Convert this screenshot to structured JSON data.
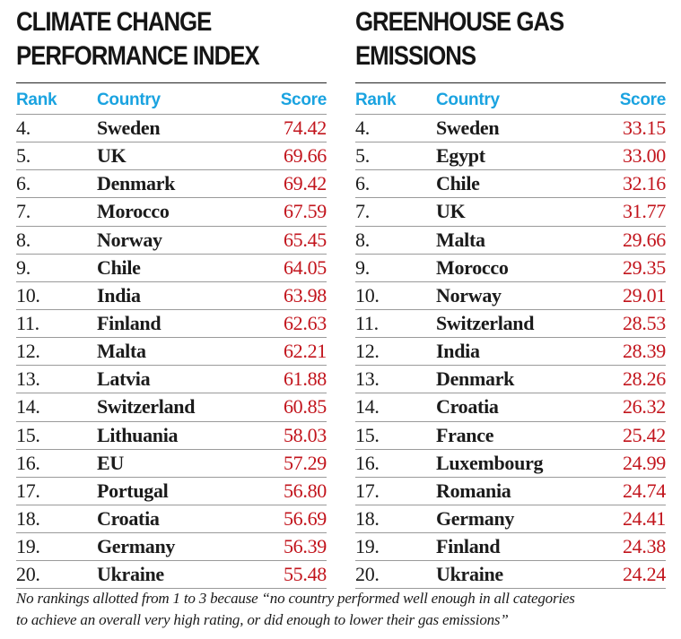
{
  "left": {
    "title_line1": "CLIMATE CHANGE",
    "title_line2": "PERFORMANCE INDEX",
    "headers": {
      "rank": "Rank",
      "country": "Country",
      "score": "Score"
    },
    "rows": [
      {
        "rank": "4.",
        "country": "Sweden",
        "score": "74.42"
      },
      {
        "rank": "5.",
        "country": "UK",
        "score": "69.66"
      },
      {
        "rank": "6.",
        "country": "Denmark",
        "score": "69.42"
      },
      {
        "rank": "7.",
        "country": "Morocco",
        "score": "67.59"
      },
      {
        "rank": "8.",
        "country": "Norway",
        "score": "65.45"
      },
      {
        "rank": "9.",
        "country": "Chile",
        "score": "64.05"
      },
      {
        "rank": "10.",
        "country": "India",
        "score": "63.98"
      },
      {
        "rank": "11.",
        "country": "Finland",
        "score": "62.63"
      },
      {
        "rank": "12.",
        "country": "Malta",
        "score": "62.21"
      },
      {
        "rank": "13.",
        "country": "Latvia",
        "score": "61.88"
      },
      {
        "rank": "14.",
        "country": "Switzerland",
        "score": "60.85"
      },
      {
        "rank": "15.",
        "country": "Lithuania",
        "score": "58.03"
      },
      {
        "rank": "16.",
        "country": "EU",
        "score": "57.29"
      },
      {
        "rank": "17.",
        "country": "Portugal",
        "score": "56.80"
      },
      {
        "rank": "18.",
        "country": "Croatia",
        "score": "56.69"
      },
      {
        "rank": "19.",
        "country": "Germany",
        "score": "56.39"
      },
      {
        "rank": "20.",
        "country": "Ukraine",
        "score": "55.48"
      }
    ]
  },
  "right": {
    "title_line1": "GREENHOUSE GAS",
    "title_line2": "EMISSIONS",
    "headers": {
      "rank": "Rank",
      "country": "Country",
      "score": "Score"
    },
    "rows": [
      {
        "rank": "4.",
        "country": "Sweden",
        "score": "33.15"
      },
      {
        "rank": "5.",
        "country": "Egypt",
        "score": "33.00"
      },
      {
        "rank": "6.",
        "country": "Chile",
        "score": "32.16"
      },
      {
        "rank": "7.",
        "country": "UK",
        "score": "31.77"
      },
      {
        "rank": "8.",
        "country": "Malta",
        "score": "29.66"
      },
      {
        "rank": "9.",
        "country": "Morocco",
        "score": "29.35"
      },
      {
        "rank": "10.",
        "country": "Norway",
        "score": "29.01"
      },
      {
        "rank": "11.",
        "country": "Switzerland",
        "score": "28.53"
      },
      {
        "rank": "12.",
        "country": "India",
        "score": "28.39"
      },
      {
        "rank": "13.",
        "country": "Denmark",
        "score": "28.26"
      },
      {
        "rank": "14.",
        "country": "Croatia",
        "score": "26.32"
      },
      {
        "rank": "15.",
        "country": "France",
        "score": "25.42"
      },
      {
        "rank": "16.",
        "country": "Luxembourg",
        "score": "24.99"
      },
      {
        "rank": "17.",
        "country": "Romania",
        "score": "24.74"
      },
      {
        "rank": "18.",
        "country": "Germany",
        "score": "24.41"
      },
      {
        "rank": "19.",
        "country": "Finland",
        "score": "24.38"
      },
      {
        "rank": "20.",
        "country": "Ukraine",
        "score": "24.24"
      }
    ]
  },
  "footnote_line1": "No rankings allotted from 1 to 3 because “no country performed well enough in all categories",
  "footnote_line2": "to achieve an overall very high rating, or did enough to lower their gas emissions”",
  "colors": {
    "header_blue": "#1aa3e0",
    "score_red": "#c2141c",
    "text": "#1a1a1a"
  }
}
